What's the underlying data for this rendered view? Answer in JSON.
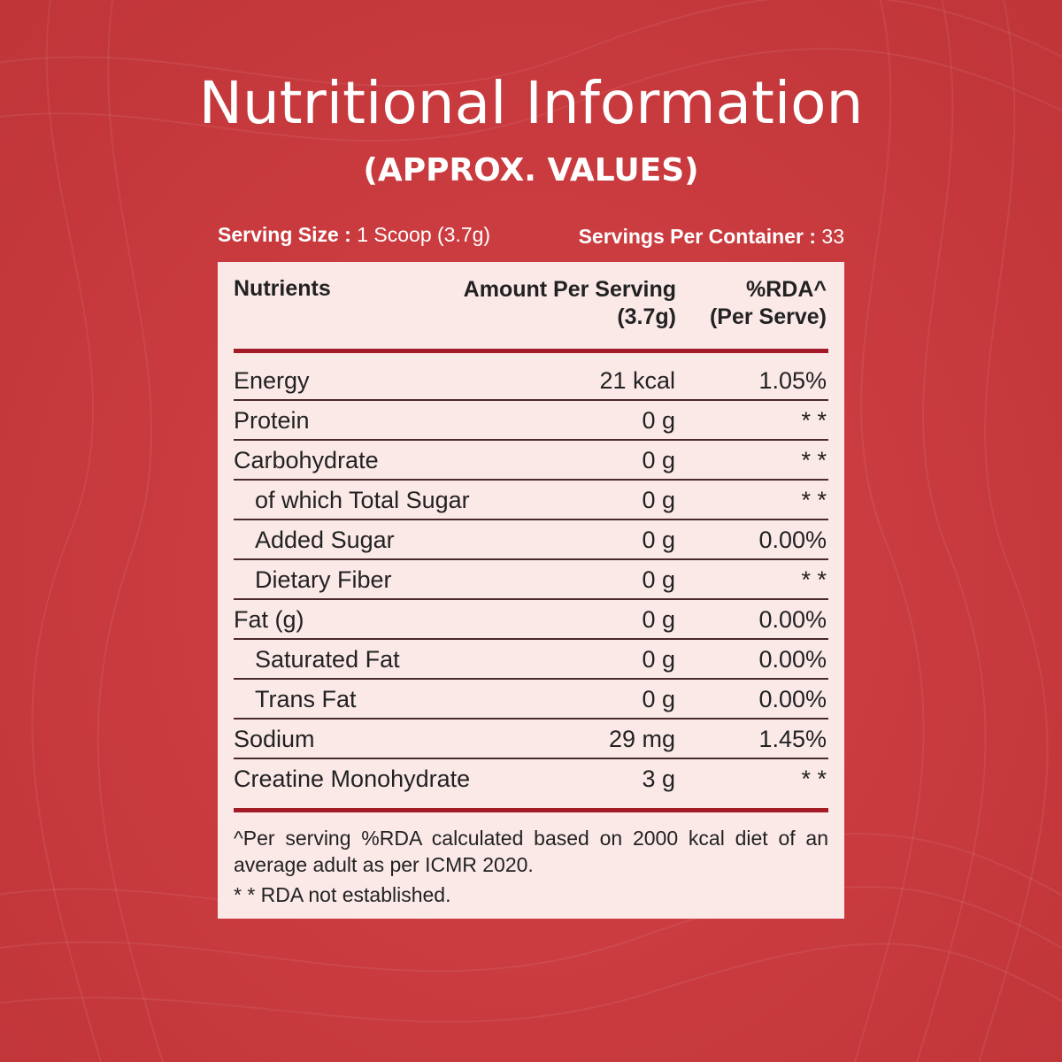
{
  "title": "Nutritional Information",
  "subtitle": "(APPROX. VALUES)",
  "serving": {
    "size_label": "Serving Size :",
    "size_value": "1 Scoop (3.7g)",
    "per_container_label": "Servings Per Container :",
    "per_container_value": "33"
  },
  "table": {
    "headers": {
      "nutrients": "Nutrients",
      "amount_line1": "Amount Per Serving",
      "amount_line2": "(3.7g)",
      "rda_line1": "%RDA^",
      "rda_line2": "(Per Serve)"
    },
    "rows": [
      {
        "name": "Energy",
        "amount": "21 kcal",
        "rda": "1.05%",
        "indent": false
      },
      {
        "name": "Protein",
        "amount": "0 g",
        "rda": "* *",
        "indent": false
      },
      {
        "name": "Carbohydrate",
        "amount": "0 g",
        "rda": "* *",
        "indent": false
      },
      {
        "name": "of which Total Sugar",
        "amount": "0 g",
        "rda": "* *",
        "indent": true
      },
      {
        "name": "Added Sugar",
        "amount": "0 g",
        "rda": "0.00%",
        "indent": true
      },
      {
        "name": "Dietary Fiber",
        "amount": "0 g",
        "rda": "* *",
        "indent": true
      },
      {
        "name": "Fat (g)",
        "amount": "0 g",
        "rda": "0.00%",
        "indent": false
      },
      {
        "name": "Saturated Fat",
        "amount": "0 g",
        "rda": "0.00%",
        "indent": true
      },
      {
        "name": "Trans Fat",
        "amount": "0 g",
        "rda": "0.00%",
        "indent": true
      },
      {
        "name": "Sodium",
        "amount": "29 mg",
        "rda": "1.45%",
        "indent": false
      },
      {
        "name": "Creatine Monohydrate",
        "amount": "3 g",
        "rda": "* *",
        "indent": false
      }
    ]
  },
  "footnotes": {
    "rda_note": "^Per serving %RDA calculated based on 2000 kcal diet of an average adult as per ICMR 2020.",
    "not_established": "* * RDA not established."
  },
  "colors": {
    "background": "#c83a3e",
    "panel": "#fbe9e8",
    "rule": "#a31b26"
  }
}
